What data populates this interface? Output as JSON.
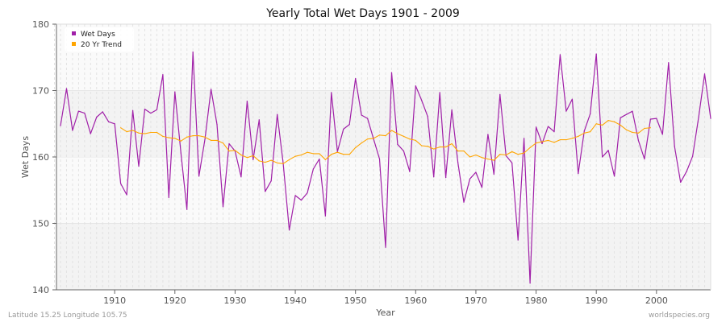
{
  "chart_data": {
    "type": "line",
    "title": "Yearly Total Wet Days 1901 - 2009",
    "xlabel": "Year",
    "ylabel": "Wet Days",
    "xlim": [
      1901,
      2009
    ],
    "ylim": [
      140,
      180
    ],
    "xticks": [
      1910,
      1920,
      1930,
      1940,
      1950,
      1960,
      1970,
      1980,
      1990,
      2000
    ],
    "yticks": [
      140,
      150,
      160,
      170,
      180
    ],
    "grid": true,
    "legend_position": "top-left",
    "series": [
      {
        "name": "Wet Days",
        "color": "#a020a8",
        "x_start": 1901,
        "values": [
          164.7,
          170.3,
          164.0,
          166.9,
          166.6,
          163.5,
          166.0,
          166.8,
          165.3,
          165.0,
          156.0,
          154.3,
          167.0,
          158.6,
          167.2,
          166.6,
          167.1,
          172.4,
          153.9,
          169.8,
          160.6,
          152.1,
          175.8,
          157.1,
          162.7,
          170.2,
          164.9,
          152.5,
          162.0,
          160.9,
          157.0,
          168.4,
          159.6,
          165.6,
          154.8,
          156.4,
          166.4,
          159.0,
          149.0,
          154.2,
          153.5,
          154.6,
          158.2,
          159.7,
          151.1,
          169.7,
          160.8,
          164.2,
          164.9,
          171.8,
          166.3,
          165.8,
          162.7,
          159.7,
          146.4,
          172.7,
          161.9,
          160.9,
          157.8,
          170.7,
          168.5,
          166.1,
          157.0,
          169.7,
          156.9,
          167.1,
          159.2,
          153.2,
          156.7,
          157.7,
          155.4,
          163.4,
          157.4,
          169.4,
          160.2,
          159.1,
          147.5,
          162.8,
          141.0,
          164.5,
          162.0,
          164.6,
          163.8,
          175.4,
          166.9,
          168.7,
          157.5,
          163.9,
          166.5,
          175.5,
          160.0,
          161.0,
          157.1,
          165.9,
          166.4,
          166.9,
          162.5,
          159.7,
          165.7,
          165.8,
          163.4,
          174.2,
          161.6,
          156.2,
          157.8,
          160.1,
          166.0,
          172.5,
          165.8
        ]
      },
      {
        "name": "20 Yr Trend",
        "color": "#ffa500",
        "x_start": 1911,
        "values": [
          164.4,
          163.8,
          164.0,
          163.6,
          163.5,
          163.7,
          163.7,
          163.1,
          162.9,
          162.8,
          162.4,
          163.0,
          163.2,
          163.2,
          163.0,
          162.5,
          162.5,
          162.1,
          160.9,
          161.0,
          160.3,
          159.9,
          160.2,
          159.4,
          159.2,
          159.5,
          159.1,
          159.0,
          159.6,
          160.1,
          160.3,
          160.7,
          160.5,
          160.5,
          159.6,
          160.4,
          160.7,
          160.4,
          160.4,
          161.4,
          162.1,
          162.7,
          162.8,
          163.3,
          163.2,
          164.0,
          163.5,
          163.1,
          162.7,
          162.5,
          161.7,
          161.6,
          161.2,
          161.5,
          161.5,
          162.0,
          160.9,
          160.9,
          160.0,
          160.3,
          159.9,
          159.7,
          159.5,
          160.4,
          160.3,
          160.8,
          160.4,
          160.6,
          161.4,
          162.1,
          162.3,
          162.5,
          162.2,
          162.6,
          162.6,
          162.8,
          163.1,
          163.6,
          163.8,
          165.0,
          164.8,
          165.5,
          165.3,
          164.8,
          164.1,
          163.7,
          163.6,
          164.3,
          164.4
        ]
      }
    ]
  },
  "footer": {
    "location": "Latitude 15.25 Longitude 105.75",
    "source": "worldspecies.org"
  }
}
